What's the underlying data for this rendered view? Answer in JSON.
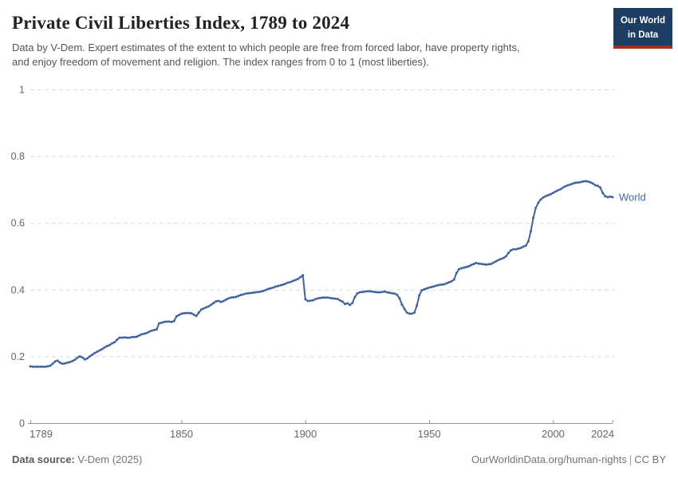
{
  "header": {
    "title": "Private Civil Liberties Index, 1789 to 2024",
    "subtitle": "Data by V-Dem. Expert estimates of the extent to which people are free from forced labor, have property rights,\nand enjoy freedom of movement and religion. The index ranges from 0 to 1 (most liberties).",
    "logo": {
      "text": "Our World\nin Data",
      "bg_color": "#1d3d63",
      "accent_color": "#a52b23"
    }
  },
  "footer": {
    "source_label": "Data source:",
    "source_value": " V-Dem (2025)",
    "attribution": "OurWorldinData.org/human-rights",
    "separator": "|",
    "license": "CC BY"
  },
  "chart_data": {
    "type": "line",
    "title": "Private Civil Liberties Index, 1789 to 2024",
    "series_label": "World",
    "line_color": "#41629e",
    "label_color": "#3d6aa6",
    "grid_color": "#dcdcdc",
    "axis_color": "#949494",
    "tick_text_color": "#666666",
    "grid": "dashed-horizontal",
    "legend_position": "end-of-line",
    "xlim": [
      1789,
      2024
    ],
    "ylim": [
      0,
      1
    ],
    "x_ticks": [
      1789,
      1850,
      1900,
      1950,
      2000,
      2024
    ],
    "y_ticks": [
      0,
      0.2,
      0.4,
      0.6,
      0.8,
      1
    ],
    "xlabel": "",
    "ylabel": "",
    "start_year": 1789,
    "values": [
      0.17,
      0.169,
      0.169,
      0.169,
      0.169,
      0.169,
      0.169,
      0.17,
      0.172,
      0.178,
      0.185,
      0.187,
      0.181,
      0.178,
      0.179,
      0.181,
      0.183,
      0.186,
      0.19,
      0.196,
      0.2,
      0.197,
      0.191,
      0.194,
      0.2,
      0.205,
      0.21,
      0.214,
      0.218,
      0.222,
      0.227,
      0.231,
      0.234,
      0.239,
      0.242,
      0.25,
      0.256,
      0.256,
      0.257,
      0.256,
      0.256,
      0.258,
      0.258,
      0.259,
      0.263,
      0.266,
      0.268,
      0.27,
      0.274,
      0.277,
      0.279,
      0.281,
      0.299,
      0.301,
      0.303,
      0.304,
      0.304,
      0.303,
      0.306,
      0.32,
      0.324,
      0.328,
      0.329,
      0.33,
      0.33,
      0.329,
      0.325,
      0.321,
      0.331,
      0.34,
      0.344,
      0.347,
      0.35,
      0.355,
      0.36,
      0.365,
      0.366,
      0.363,
      0.366,
      0.37,
      0.374,
      0.376,
      0.377,
      0.378,
      0.381,
      0.384,
      0.386,
      0.388,
      0.389,
      0.39,
      0.391,
      0.392,
      0.393,
      0.394,
      0.396,
      0.399,
      0.402,
      0.404,
      0.406,
      0.409,
      0.411,
      0.413,
      0.415,
      0.418,
      0.421,
      0.423,
      0.426,
      0.429,
      0.432,
      0.437,
      0.443,
      0.371,
      0.366,
      0.367,
      0.368,
      0.371,
      0.374,
      0.375,
      0.376,
      0.376,
      0.376,
      0.375,
      0.374,
      0.373,
      0.372,
      0.368,
      0.364,
      0.357,
      0.359,
      0.354,
      0.36,
      0.378,
      0.389,
      0.392,
      0.393,
      0.394,
      0.395,
      0.395,
      0.394,
      0.393,
      0.392,
      0.392,
      0.393,
      0.394,
      0.392,
      0.391,
      0.389,
      0.388,
      0.385,
      0.374,
      0.355,
      0.342,
      0.331,
      0.328,
      0.328,
      0.331,
      0.352,
      0.383,
      0.398,
      0.401,
      0.404,
      0.406,
      0.408,
      0.41,
      0.412,
      0.414,
      0.415,
      0.416,
      0.419,
      0.422,
      0.425,
      0.43,
      0.45,
      0.461,
      0.464,
      0.466,
      0.468,
      0.47,
      0.474,
      0.477,
      0.48,
      0.478,
      0.477,
      0.476,
      0.475,
      0.476,
      0.477,
      0.481,
      0.485,
      0.489,
      0.492,
      0.495,
      0.5,
      0.51,
      0.518,
      0.521,
      0.521,
      0.523,
      0.525,
      0.529,
      0.532,
      0.545,
      0.575,
      0.615,
      0.645,
      0.66,
      0.67,
      0.676,
      0.68,
      0.683,
      0.686,
      0.69,
      0.694,
      0.698,
      0.701,
      0.706,
      0.71,
      0.713,
      0.715,
      0.718,
      0.72,
      0.721,
      0.722,
      0.724,
      0.725,
      0.724,
      0.722,
      0.718,
      0.713,
      0.711,
      0.706,
      0.69,
      0.68,
      0.677,
      0.679,
      0.677
    ]
  }
}
